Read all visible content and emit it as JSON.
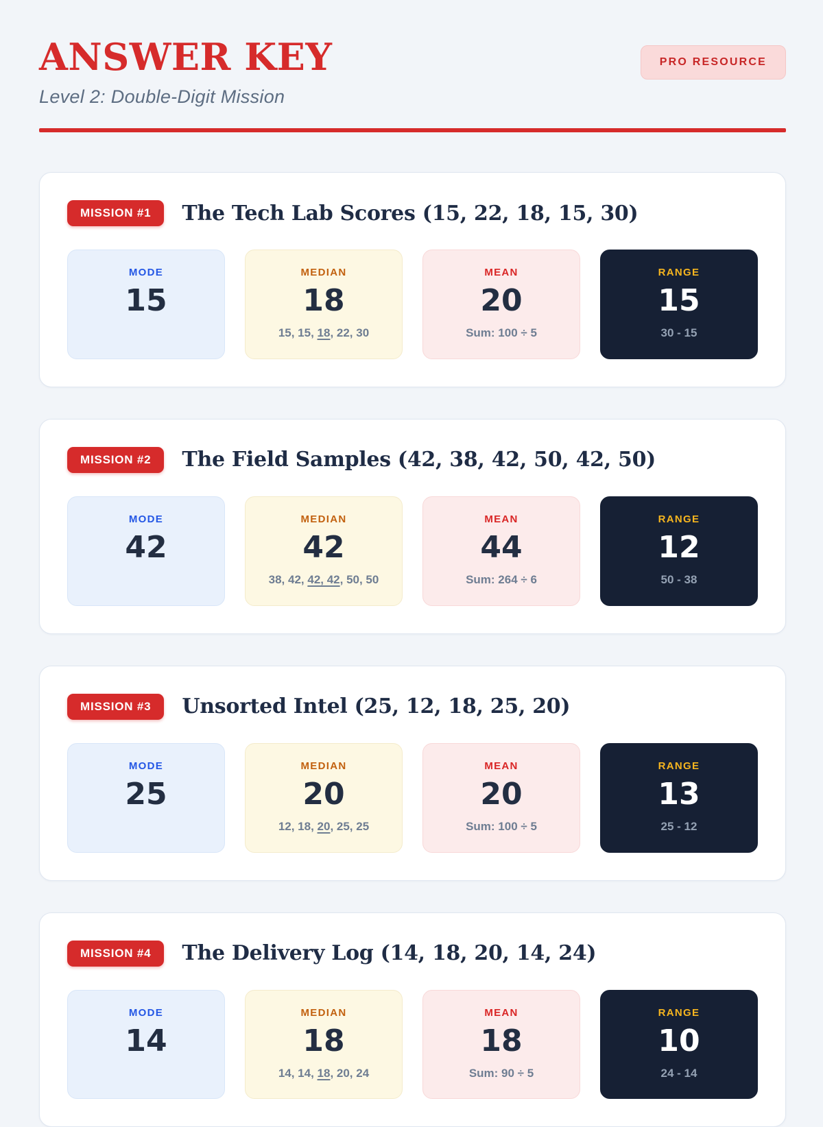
{
  "header": {
    "title": "ANSWER KEY",
    "subtitle": "Level 2: Double-Digit Mission",
    "badge": "PRO RESOURCE"
  },
  "colors": {
    "accent": "#d62b2b",
    "page-bg": "#f2f5f9",
    "card-border": "#dfe6f0",
    "ink": "#1f2c45",
    "number": "#232e42",
    "slate": "#5d6d82",
    "note": "#6e7d92",
    "pro-bg": "#fadada",
    "pro-border": "#f4c7c7",
    "pro-text": "#c72626",
    "mode-bg": "#e9f1fc",
    "mode-border": "#d8e6f8",
    "mode-label": "#2457e5",
    "median-bg": "#fdf8e3",
    "median-border": "#f4ebcb",
    "median-label": "#c2610f",
    "mean-bg": "#fcebeb",
    "mean-border": "#f8d8d8",
    "mean-label": "#d92525",
    "range-bg": "#162034",
    "range-label": "#f6b51f",
    "range-note": "#94a1b3"
  },
  "missions": [
    {
      "badge": "MISSION #1",
      "title": "The Tech Lab Scores (15, 22, 18, 15, 30)",
      "stats": [
        {
          "label": "MODE",
          "value": "15"
        },
        {
          "label": "MEDIAN",
          "value": "18",
          "note_parts": [
            {
              "t": "15, 15, "
            },
            {
              "t": "18",
              "u": true
            },
            {
              "t": ", 22, 30"
            }
          ]
        },
        {
          "label": "MEAN",
          "value": "20",
          "note_parts": [
            {
              "t": "Sum: 100 ÷ 5"
            }
          ]
        },
        {
          "label": "RANGE",
          "value": "15",
          "note_parts": [
            {
              "t": "30 - 15"
            }
          ]
        }
      ]
    },
    {
      "badge": "MISSION #2",
      "title": "The Field Samples (42, 38, 42, 50, 42, 50)",
      "stats": [
        {
          "label": "MODE",
          "value": "42"
        },
        {
          "label": "MEDIAN",
          "value": "42",
          "note_parts": [
            {
              "t": "38, 42, "
            },
            {
              "t": "42, 42",
              "u": true
            },
            {
              "t": ", 50, 50"
            }
          ]
        },
        {
          "label": "MEAN",
          "value": "44",
          "note_parts": [
            {
              "t": "Sum: 264 ÷ 6"
            }
          ]
        },
        {
          "label": "RANGE",
          "value": "12",
          "note_parts": [
            {
              "t": "50 - 38"
            }
          ]
        }
      ]
    },
    {
      "badge": "MISSION #3",
      "title": "Unsorted Intel (25, 12, 18, 25, 20)",
      "stats": [
        {
          "label": "MODE",
          "value": "25"
        },
        {
          "label": "MEDIAN",
          "value": "20",
          "note_parts": [
            {
              "t": "12, 18, "
            },
            {
              "t": "20",
              "u": true
            },
            {
              "t": ", 25, 25"
            }
          ]
        },
        {
          "label": "MEAN",
          "value": "20",
          "note_parts": [
            {
              "t": "Sum: 100 ÷ 5"
            }
          ]
        },
        {
          "label": "RANGE",
          "value": "13",
          "note_parts": [
            {
              "t": "25 - 12"
            }
          ]
        }
      ]
    },
    {
      "badge": "MISSION #4",
      "title": "The Delivery Log (14, 18, 20, 14, 24)",
      "stats": [
        {
          "label": "MODE",
          "value": "14"
        },
        {
          "label": "MEDIAN",
          "value": "18",
          "note_parts": [
            {
              "t": "14, 14, "
            },
            {
              "t": "18",
              "u": true
            },
            {
              "t": ", 20, 24"
            }
          ]
        },
        {
          "label": "MEAN",
          "value": "18",
          "note_parts": [
            {
              "t": "Sum: 90 ÷ 5"
            }
          ]
        },
        {
          "label": "RANGE",
          "value": "10",
          "note_parts": [
            {
              "t": "24 - 14"
            }
          ]
        }
      ]
    }
  ]
}
